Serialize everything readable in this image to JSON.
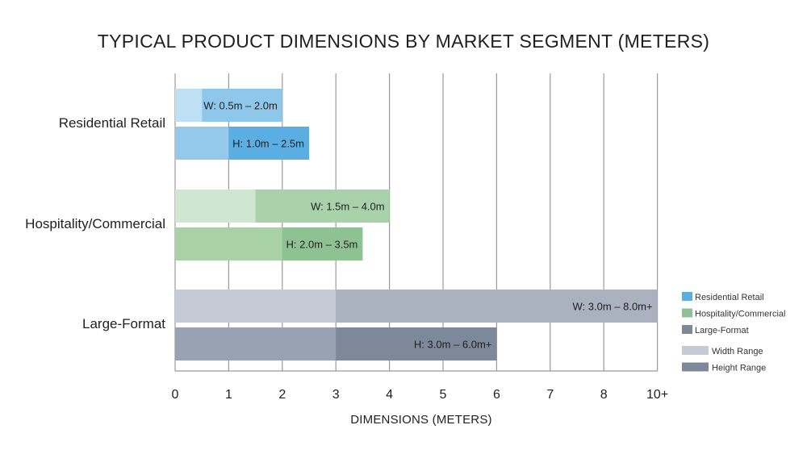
{
  "chart_data": {
    "type": "bar",
    "orientation": "horizontal",
    "title": "TYPICAL PRODUCT DIMENSIONS BY MARKET SEGMENT (METERS)",
    "xlabel": "DIMENSIONS (METERS)",
    "ylabel": "",
    "xlim": [
      0,
      9
    ],
    "x_ticks": [
      {
        "value": 0,
        "label": "0"
      },
      {
        "value": 1,
        "label": "1"
      },
      {
        "value": 2,
        "label": "2"
      },
      {
        "value": 3,
        "label": "3"
      },
      {
        "value": 4,
        "label": "4"
      },
      {
        "value": 5,
        "label": "5"
      },
      {
        "value": 6,
        "label": "6"
      },
      {
        "value": 7,
        "label": "7"
      },
      {
        "value": 8,
        "label": "8"
      },
      {
        "value": 9,
        "label": "10+"
      }
    ],
    "grid": true,
    "legend_position": "right",
    "categories": [
      "Residential Retail",
      "Hospitality/Commercial",
      "Large-Format"
    ],
    "segments": [
      {
        "category": "Residential Retail",
        "colors": {
          "width_light": "#bfe0f4",
          "width_dark": "#8ec7ea",
          "height_light": "#94c9ec",
          "height_dark": "#5aaee2"
        },
        "width": {
          "min": 0.5,
          "max": 2.0,
          "label": "W: 0.5m – 2.0m"
        },
        "height": {
          "min": 1.0,
          "max": 2.5,
          "label": "H: 1.0m – 2.5m"
        }
      },
      {
        "category": "Hospitality/Commercial",
        "colors": {
          "width_light": "#cfe6d0",
          "width_dark": "#a9d2aa",
          "height_light": "#a8d1a8",
          "height_dark": "#8fc292"
        },
        "width": {
          "min": 1.5,
          "max": 4.0,
          "label": "W: 1.5m – 4.0m"
        },
        "height": {
          "min": 2.0,
          "max": 3.5,
          "label": "H: 2.0m – 3.5m"
        }
      },
      {
        "category": "Large-Format",
        "colors": {
          "width_light": "#c5cad6",
          "width_dark": "#aab1bf",
          "height_light": "#98a2b3",
          "height_dark": "#7d889b"
        },
        "width": {
          "min": 3.0,
          "max": 9.0,
          "label": "W: 3.0m – 8.0m+"
        },
        "height": {
          "min": 3.0,
          "max": 6.0,
          "label": "H: 3.0m – 6.0m+"
        }
      }
    ],
    "legend": {
      "segments": [
        {
          "label": "Residential Retail",
          "color": "#5aaee2"
        },
        {
          "label": "Hospitality/Commercial",
          "color": "#8fc292"
        },
        {
          "label": "Large-Format",
          "color": "#7d889b"
        }
      ],
      "ranges": [
        {
          "label": "Width Range",
          "color": "#c5cad6"
        },
        {
          "label": "Height Range",
          "color": "#7d889b"
        }
      ]
    }
  }
}
